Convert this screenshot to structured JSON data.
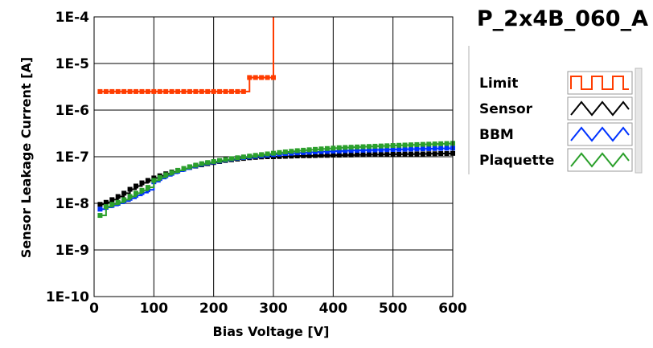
{
  "chart_data": {
    "type": "line",
    "title": "P_2x4B_060_A",
    "xlabel": "Bias Voltage [V]",
    "ylabel": "Sensor Leakage Current [A]",
    "xlim": [
      0,
      600
    ],
    "ylim": [
      1e-10,
      0.0001
    ],
    "yscale": "log",
    "grid": true,
    "legend_position": "right",
    "x_ticks": [
      "0",
      "100",
      "200",
      "300",
      "400",
      "500",
      "600"
    ],
    "y_ticks": [
      "1E-10",
      "1E-9",
      "1E-8",
      "1E-7",
      "1E-6",
      "1E-5",
      "1E-4"
    ],
    "series": [
      {
        "name": "Limit",
        "color": "#ff3c00",
        "style": "step",
        "x": [
          10,
          20,
          30,
          40,
          50,
          60,
          70,
          80,
          90,
          100,
          110,
          120,
          130,
          140,
          150,
          160,
          170,
          180,
          190,
          200,
          210,
          220,
          230,
          240,
          250,
          260,
          270,
          280,
          290,
          300
        ],
        "y": [
          2.5e-06,
          2.5e-06,
          2.5e-06,
          2.5e-06,
          2.5e-06,
          2.5e-06,
          2.5e-06,
          2.5e-06,
          2.5e-06,
          2.5e-06,
          2.5e-06,
          2.5e-06,
          2.5e-06,
          2.5e-06,
          2.5e-06,
          2.5e-06,
          2.5e-06,
          2.5e-06,
          2.5e-06,
          2.5e-06,
          2.5e-06,
          2.5e-06,
          2.5e-06,
          2.5e-06,
          2.5e-06,
          5e-06,
          5e-06,
          5e-06,
          5e-06,
          5e-06
        ],
        "end_x": 300,
        "end_y": 0.0001
      },
      {
        "name": "Sensor",
        "color": "#000000",
        "style": "step",
        "x": [
          10,
          20,
          30,
          40,
          50,
          60,
          70,
          80,
          90,
          100,
          110,
          120,
          130,
          140,
          150,
          160,
          170,
          180,
          190,
          200,
          210,
          220,
          230,
          240,
          250,
          260,
          270,
          280,
          290,
          300,
          310,
          320,
          330,
          340,
          350,
          360,
          370,
          380,
          390,
          400,
          410,
          420,
          430,
          440,
          450,
          460,
          470,
          480,
          490,
          500,
          510,
          520,
          530,
          540,
          550,
          560,
          570,
          580,
          590,
          600
        ],
        "y": [
          9.5e-09,
          1.05e-08,
          1.2e-08,
          1.4e-08,
          1.65e-08,
          2e-08,
          2.35e-08,
          2.75e-08,
          3.1e-08,
          3.5e-08,
          3.9e-08,
          4.3e-08,
          4.7e-08,
          5.1e-08,
          5.5e-08,
          5.9e-08,
          6.3e-08,
          6.7e-08,
          7.1e-08,
          7.5e-08,
          7.9e-08,
          8.3e-08,
          8.6e-08,
          8.9e-08,
          9.2e-08,
          9.5e-08,
          9.7e-08,
          9.9e-08,
          1e-07,
          1e-07,
          1.01e-07,
          1.02e-07,
          1.03e-07,
          1.04e-07,
          1.05e-07,
          1.05e-07,
          1.06e-07,
          1.07e-07,
          1.07e-07,
          1.08e-07,
          1.08e-07,
          1.09e-07,
          1.09e-07,
          1.1e-07,
          1.1e-07,
          1.11e-07,
          1.11e-07,
          1.12e-07,
          1.12e-07,
          1.13e-07,
          1.13e-07,
          1.14e-07,
          1.14e-07,
          1.15e-07,
          1.15e-07,
          1.16e-07,
          1.16e-07,
          1.17e-07,
          1.17e-07,
          1.18e-07
        ]
      },
      {
        "name": "BBM",
        "color": "#0033ff",
        "style": "step",
        "x": [
          10,
          20,
          30,
          40,
          50,
          60,
          70,
          80,
          90,
          100,
          110,
          120,
          130,
          140,
          150,
          160,
          170,
          180,
          190,
          200,
          210,
          220,
          230,
          240,
          250,
          260,
          270,
          280,
          290,
          300,
          310,
          320,
          330,
          340,
          350,
          360,
          370,
          380,
          390,
          400,
          410,
          420,
          430,
          440,
          450,
          460,
          470,
          480,
          490,
          500,
          510,
          520,
          530,
          540,
          550,
          560,
          570,
          580,
          590,
          600
        ],
        "y": [
          7.5e-09,
          8.2e-09,
          9e-09,
          1e-08,
          1.12e-08,
          1.28e-08,
          1.48e-08,
          1.7e-08,
          1.95e-08,
          2.9e-08,
          3.4e-08,
          3.9e-08,
          4.4e-08,
          4.9e-08,
          5.4e-08,
          5.9e-08,
          6.4e-08,
          6.9e-08,
          7.3e-08,
          7.7e-08,
          8.1e-08,
          8.5e-08,
          8.9e-08,
          9.3e-08,
          9.6e-08,
          9.9e-08,
          1.02e-07,
          1.05e-07,
          1.08e-07,
          1.11e-07,
          1.14e-07,
          1.17e-07,
          1.19e-07,
          1.21e-07,
          1.23e-07,
          1.25e-07,
          1.27e-07,
          1.29e-07,
          1.3e-07,
          1.32e-07,
          1.33e-07,
          1.35e-07,
          1.36e-07,
          1.37e-07,
          1.38e-07,
          1.39e-07,
          1.4e-07,
          1.41e-07,
          1.42e-07,
          1.43e-07,
          1.44e-07,
          1.45e-07,
          1.46e-07,
          1.47e-07,
          1.48e-07,
          1.49e-07,
          1.5e-07,
          1.51e-07,
          1.52e-07,
          1.53e-07
        ]
      },
      {
        "name": "Plaquette",
        "color": "#2ca02c",
        "style": "step",
        "x": [
          10,
          20,
          30,
          40,
          50,
          60,
          70,
          80,
          90,
          100,
          110,
          120,
          130,
          140,
          150,
          160,
          170,
          180,
          190,
          200,
          210,
          220,
          230,
          240,
          250,
          260,
          270,
          280,
          290,
          300,
          310,
          320,
          330,
          340,
          350,
          360,
          370,
          380,
          390,
          400,
          410,
          420,
          430,
          440,
          450,
          460,
          470,
          480,
          490,
          500,
          510,
          520,
          530,
          540,
          550,
          560,
          570,
          580,
          590,
          600
        ],
        "y": [
          5.5e-09,
          8.5e-09,
          9.5e-09,
          1.05e-08,
          1.2e-08,
          1.4e-08,
          1.65e-08,
          1.9e-08,
          2.2e-08,
          3.1e-08,
          3.6e-08,
          4.1e-08,
          4.6e-08,
          5.1e-08,
          5.6e-08,
          6.1e-08,
          6.6e-08,
          7.1e-08,
          7.5e-08,
          7.9e-08,
          8.3e-08,
          8.7e-08,
          9.1e-08,
          9.5e-08,
          9.9e-08,
          1.03e-07,
          1.07e-07,
          1.11e-07,
          1.15e-07,
          1.19e-07,
          1.23e-07,
          1.27e-07,
          1.31e-07,
          1.35e-07,
          1.38e-07,
          1.41e-07,
          1.44e-07,
          1.47e-07,
          1.5e-07,
          1.53e-07,
          1.56e-07,
          1.58e-07,
          1.6e-07,
          1.62e-07,
          1.64e-07,
          1.66e-07,
          1.68e-07,
          1.7e-07,
          1.72e-07,
          1.74e-07,
          1.76e-07,
          1.78e-07,
          1.8e-07,
          1.82e-07,
          1.84e-07,
          1.86e-07,
          1.88e-07,
          1.9e-07,
          1.92e-07,
          1.94e-07
        ]
      }
    ]
  }
}
